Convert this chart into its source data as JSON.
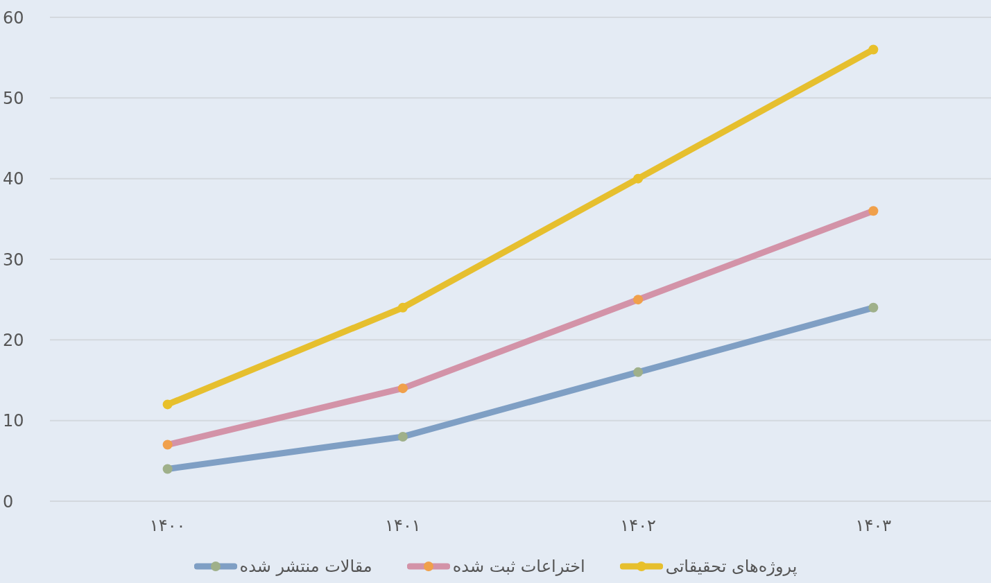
{
  "chart_data": {
    "type": "line",
    "categories": [
      "۱۴۰۰",
      "۱۴۰۱",
      "۱۴۰۲",
      "۱۴۰۳"
    ],
    "series": [
      {
        "name": "مقالات منتشر شده",
        "color": "#7f9fc4",
        "colors": [
          "#9fb08a",
          "#9fb08a",
          "#9fb08a",
          "#9fb08a"
        ],
        "values": [
          4,
          8,
          16,
          24
        ]
      },
      {
        "name": "اختراعات ثبت شده",
        "color": "#d393a8",
        "colors": [
          "#f0a04b",
          "#f0a04b",
          "#f0a04b",
          "#f0a04b"
        ],
        "values": [
          7,
          14,
          25,
          36
        ]
      },
      {
        "name": "پروژه‌های تحقیقاتی",
        "color": "#e6bf2e",
        "colors": [
          "#e8c02a",
          "#e8c02a",
          "#e8c02a",
          "#e8c02a"
        ],
        "values": [
          12,
          24,
          40,
          56
        ]
      }
    ],
    "ylim": [
      0,
      60
    ],
    "yticks": [
      0,
      10,
      20,
      30,
      40,
      50,
      60
    ],
    "grid": "y",
    "legend": "bottom",
    "marker": "circle",
    "line_style": "solid"
  }
}
